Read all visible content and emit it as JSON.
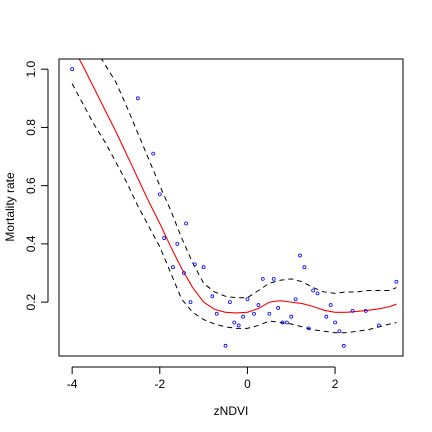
{
  "chart_data": {
    "type": "scatter",
    "xlabel": "zNDVI",
    "ylabel": "Mortality rate",
    "xlim": [
      -4.3,
      3.55
    ],
    "ylim": [
      0.015,
      1.035
    ],
    "x_ticks": [
      -4,
      -2,
      0,
      2
    ],
    "x_tick_labels": [
      "-4",
      "-2",
      "0",
      "2"
    ],
    "y_ticks": [
      0.2,
      0.4,
      0.6,
      0.8,
      1.0
    ],
    "y_tick_labels": [
      "0.2",
      "0.4",
      "0.6",
      "0.8",
      "1.0"
    ],
    "grid": false,
    "legend": "none",
    "colors": {
      "points": "#0000ff",
      "fit": "#ff0000",
      "bands": "#000000"
    },
    "points": {
      "x": [
        -4.0,
        -2.5,
        -2.15,
        -2.0,
        -1.9,
        -1.7,
        -1.6,
        -1.45,
        -1.4,
        -1.3,
        -1.2,
        -1.0,
        -0.8,
        -0.7,
        -0.5,
        -0.4,
        -0.3,
        -0.2,
        -0.1,
        0.0,
        0.15,
        0.25,
        0.35,
        0.5,
        0.6,
        0.7,
        0.8,
        0.9,
        1.0,
        1.1,
        1.2,
        1.3,
        1.4,
        1.5,
        1.6,
        1.8,
        1.9,
        2.0,
        2.1,
        2.2,
        2.4,
        2.7,
        3.0,
        3.4
      ],
      "y": [
        1.0,
        0.9,
        0.71,
        0.57,
        0.42,
        0.32,
        0.4,
        0.3,
        0.47,
        0.2,
        0.33,
        0.32,
        0.22,
        0.16,
        0.05,
        0.2,
        0.13,
        0.12,
        0.15,
        0.21,
        0.16,
        0.19,
        0.28,
        0.16,
        0.28,
        0.18,
        0.13,
        0.13,
        0.15,
        0.21,
        0.36,
        0.32,
        0.11,
        0.24,
        0.23,
        0.15,
        0.19,
        0.13,
        0.1,
        0.05,
        0.17,
        0.17,
        0.12,
        0.27
      ]
    },
    "fit": {
      "x": [
        -4.0,
        -3.75,
        -3.5,
        -3.25,
        -3.0,
        -2.75,
        -2.5,
        -2.25,
        -2.0,
        -1.75,
        -1.5,
        -1.25,
        -1.0,
        -0.75,
        -0.5,
        -0.25,
        0.0,
        0.25,
        0.5,
        0.75,
        1.0,
        1.25,
        1.5,
        1.75,
        2.0,
        2.25,
        2.5,
        2.75,
        3.0,
        3.25,
        3.4
      ],
      "y": [
        1.08,
        1.01,
        0.935,
        0.86,
        0.785,
        0.705,
        0.625,
        0.545,
        0.47,
        0.39,
        0.315,
        0.25,
        0.2,
        0.175,
        0.165,
        0.163,
        0.165,
        0.178,
        0.2,
        0.205,
        0.2,
        0.195,
        0.185,
        0.172,
        0.165,
        0.165,
        0.168,
        0.172,
        0.177,
        0.185,
        0.193
      ]
    },
    "upper_band": {
      "x": [
        -3.35,
        -3.0,
        -2.75,
        -2.5,
        -2.25,
        -2.0,
        -1.75,
        -1.5,
        -1.25,
        -1.0,
        -0.75,
        -0.5,
        -0.25,
        0.0,
        0.25,
        0.5,
        0.75,
        1.0,
        1.25,
        1.5,
        1.75,
        2.0,
        2.25,
        2.5,
        2.75,
        3.0,
        3.25,
        3.4
      ],
      "y": [
        1.04,
        0.955,
        0.87,
        0.78,
        0.69,
        0.6,
        0.515,
        0.42,
        0.335,
        0.265,
        0.235,
        0.22,
        0.215,
        0.215,
        0.24,
        0.265,
        0.275,
        0.28,
        0.27,
        0.25,
        0.235,
        0.23,
        0.235,
        0.235,
        0.24,
        0.24,
        0.24,
        0.25
      ]
    },
    "lower_band": {
      "x": [
        -4.0,
        -3.75,
        -3.5,
        -3.25,
        -3.0,
        -2.75,
        -2.5,
        -2.25,
        -2.0,
        -1.75,
        -1.5,
        -1.25,
        -1.0,
        -0.75,
        -0.5,
        -0.25,
        0.0,
        0.25,
        0.5,
        0.75,
        1.0,
        1.25,
        1.5,
        1.75,
        2.0,
        2.25,
        2.5,
        2.75,
        3.0,
        3.25,
        3.4
      ],
      "y": [
        0.95,
        0.88,
        0.81,
        0.75,
        0.68,
        0.61,
        0.53,
        0.46,
        0.39,
        0.3,
        0.21,
        0.165,
        0.14,
        0.125,
        0.115,
        0.11,
        0.11,
        0.12,
        0.135,
        0.13,
        0.125,
        0.115,
        0.105,
        0.1,
        0.095,
        0.095,
        0.1,
        0.105,
        0.115,
        0.125,
        0.13
      ]
    }
  }
}
